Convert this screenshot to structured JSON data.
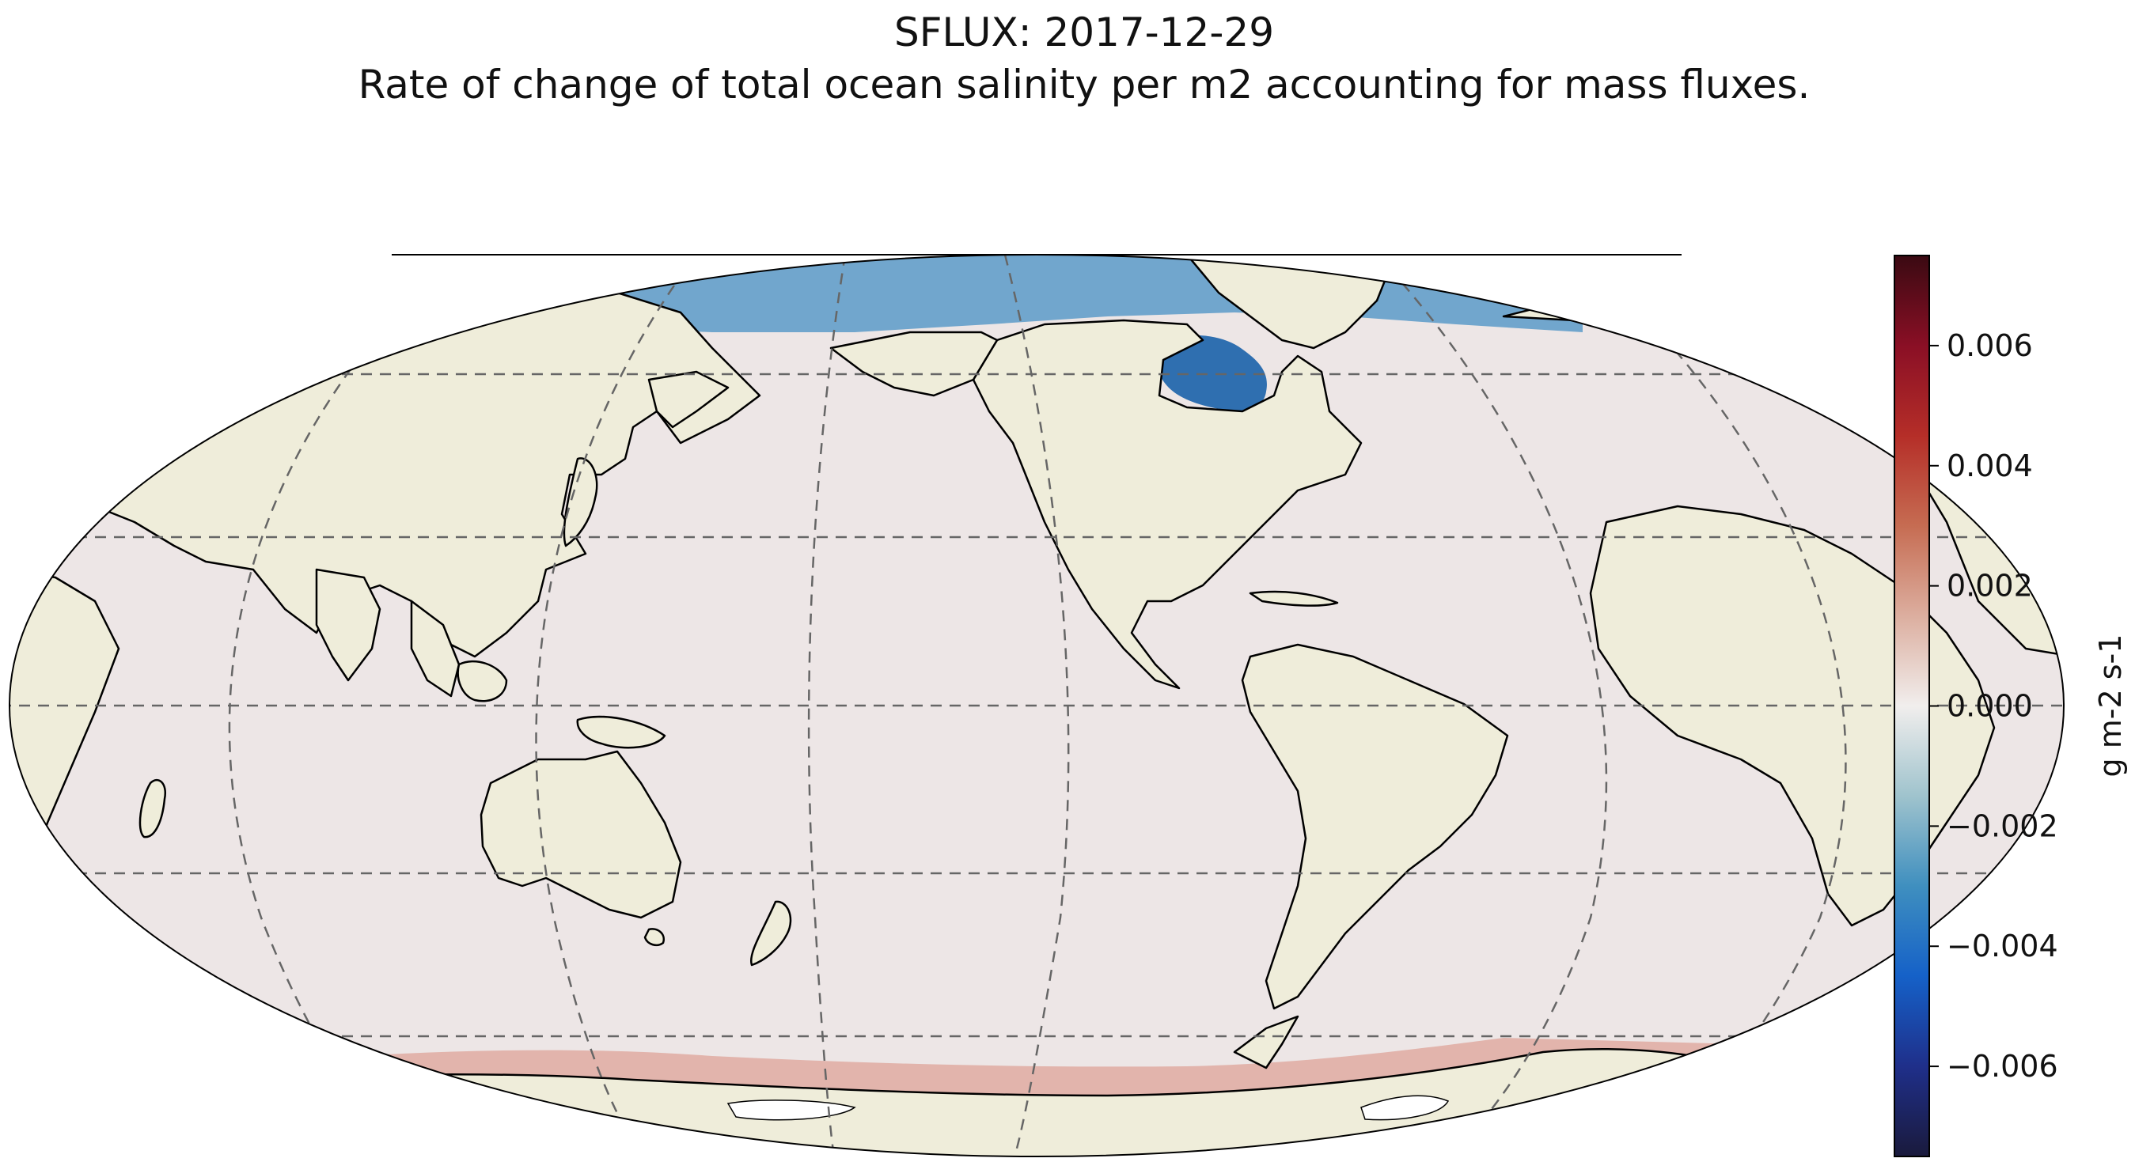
{
  "title": {
    "line1": "SFLUX: 2017-12-29",
    "line2": "Rate of change of total ocean salinity per m2 accounting for mass fluxes."
  },
  "map": {
    "projection": "Robinson",
    "central_longitude": 180,
    "gridlines": "dashed",
    "coastlines": true,
    "colors": {
      "ocean_neutral": "#ede6e6",
      "land": "#efedda",
      "coastline": "#000000",
      "gridline": "#666666",
      "arctic_negative": "#5b9ac8",
      "hudson_bay": "#2f6fb0",
      "antarctic_positive": "#e2b4ac"
    }
  },
  "colorbar": {
    "label": "g m-2 s-1",
    "vmin": -0.0075,
    "vmax": 0.0075,
    "colormap": "balance",
    "ticks": [
      {
        "value": 0.006,
        "label": "0.006"
      },
      {
        "value": 0.004,
        "label": "0.004"
      },
      {
        "value": 0.002,
        "label": "0.002"
      },
      {
        "value": 0.0,
        "label": "0.000"
      },
      {
        "value": -0.002,
        "label": "−0.002"
      },
      {
        "value": -0.004,
        "label": "−0.004"
      },
      {
        "value": -0.006,
        "label": "−0.006"
      }
    ],
    "stops": [
      {
        "value": -0.0075,
        "color": "#1a1a3c"
      },
      {
        "value": -0.006,
        "color": "#1f2f8a"
      },
      {
        "value": -0.0045,
        "color": "#1561c8"
      },
      {
        "value": -0.003,
        "color": "#3f8fbf"
      },
      {
        "value": -0.0015,
        "color": "#9fc3cd"
      },
      {
        "value": 0.0,
        "color": "#f1eeed"
      },
      {
        "value": 0.0015,
        "color": "#dcae9f"
      },
      {
        "value": 0.003,
        "color": "#c66c52"
      },
      {
        "value": 0.0045,
        "color": "#b52e28"
      },
      {
        "value": 0.006,
        "color": "#8a0f25"
      },
      {
        "value": 0.0075,
        "color": "#3a0a12"
      }
    ]
  }
}
